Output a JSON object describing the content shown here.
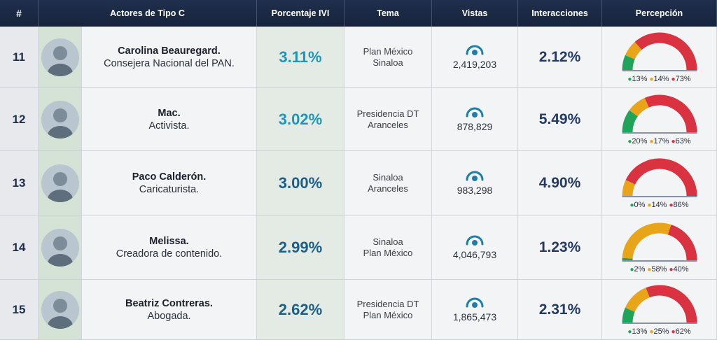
{
  "headers": {
    "num": "#",
    "actor": "Actores de Tipo C",
    "ivi": "Porcentaje IVI",
    "tema": "Tema",
    "vistas": "Vistas",
    "interacciones": "Interacciones",
    "percepcion": "Percepción"
  },
  "colors": {
    "positive": "#22a35a",
    "neutral": "#e8a51a",
    "negative": "#d93342",
    "header": "#1f2f4d",
    "accent": "#1e96b8"
  },
  "rows": [
    {
      "num": "11",
      "name": "Carolina Beauregard.",
      "role": "Consejera Nacional del PAN.",
      "ivi": "3.11%",
      "tema": [
        "Plan México",
        "Sinaloa"
      ],
      "vistas": "2,419,203",
      "interacciones": "2.12%",
      "perc": {
        "pos": 13,
        "neu": 14,
        "neg": 73,
        "pos_label": "13%",
        "neu_label": "14%",
        "neg_label": "73%"
      },
      "icon": "eye-icon"
    },
    {
      "num": "12",
      "name": "Mac.",
      "role": "Activista.",
      "ivi": "3.02%",
      "tema": [
        "Presidencia DT",
        "Aranceles"
      ],
      "vistas": "878,829",
      "interacciones": "5.49%",
      "perc": {
        "pos": 20,
        "neu": 17,
        "neg": 63,
        "pos_label": "20%",
        "neu_label": "17%",
        "neg_label": "63%"
      },
      "icon": "eye-icon"
    },
    {
      "num": "13",
      "name": "Paco Calderón.",
      "role": "Caricaturista.",
      "ivi": "3.00%",
      "tema": [
        "Sinaloa",
        "Aranceles"
      ],
      "vistas": "983,298",
      "interacciones": "4.90%",
      "perc": {
        "pos": 0,
        "neu": 14,
        "neg": 86,
        "pos_label": "0%",
        "neu_label": "14%",
        "neg_label": "86%"
      },
      "icon": "eye-icon"
    },
    {
      "num": "14",
      "name": "Melissa.",
      "role": "Creadora de contenido.",
      "ivi": "2.99%",
      "tema": [
        "Sinaloa",
        "Plan México"
      ],
      "vistas": "4,046,793",
      "interacciones": "1.23%",
      "perc": {
        "pos": 2,
        "neu": 58,
        "neg": 40,
        "pos_label": "2%",
        "neu_label": "58%",
        "neg_label": "40%"
      },
      "icon": "eye-icon"
    },
    {
      "num": "15",
      "name": "Beatriz Contreras.",
      "role": "Abogada.",
      "ivi": "2.62%",
      "tema": [
        "Presidencia DT",
        "Plan México"
      ],
      "vistas": "1,865,473",
      "interacciones": "2.31%",
      "perc": {
        "pos": 13,
        "neu": 25,
        "neg": 62,
        "pos_label": "13%",
        "neu_label": "25%",
        "neg_label": "62%"
      },
      "icon": "eye-icon"
    }
  ]
}
